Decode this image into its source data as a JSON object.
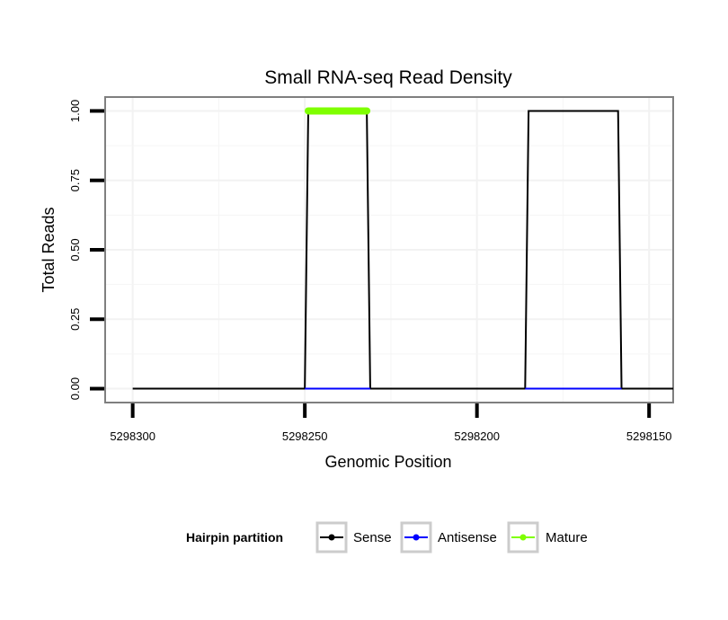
{
  "chart_data": {
    "type": "line",
    "title": "Small RNA-seq Read Density",
    "xlabel": "Genomic Position",
    "ylabel": "Total Reads",
    "x_reversed": true,
    "xlim": [
      5298308,
      5298143
    ],
    "ylim": [
      -0.05,
      1.05
    ],
    "x_ticks": [
      5298300,
      5298250,
      5298200,
      5298150
    ],
    "x_tick_labels": [
      "5298300",
      "5298250",
      "5298200",
      "5298150"
    ],
    "y_ticks": [
      0,
      0.25,
      0.5,
      0.75,
      1
    ],
    "y_tick_labels": [
      "0.00",
      "0.25",
      "0.50",
      "0.75",
      "1.00"
    ],
    "grid": true,
    "legend": {
      "title": "Hairpin partition",
      "position": "bottom",
      "entries": [
        {
          "label": "Sense",
          "color": "#000000"
        },
        {
          "label": "Antisense",
          "color": "#0000ff"
        },
        {
          "label": "Mature",
          "color": "#7fff00"
        }
      ]
    },
    "series": [
      {
        "name": "Sense",
        "color": "#000000",
        "x": [
          5298300,
          5298250,
          5298249,
          5298232,
          5298231,
          5298186,
          5298185,
          5298159,
          5298158,
          5298143
        ],
        "y": [
          0,
          0,
          1,
          1,
          0,
          0,
          1,
          1,
          0,
          0
        ]
      },
      {
        "name": "Antisense",
        "color": "#0000ff",
        "x": [
          5298250,
          5298231,
          5298186,
          5298158
        ],
        "y": [
          0,
          0,
          0,
          0
        ],
        "segments": [
          [
            0,
            1
          ],
          [
            2,
            3
          ]
        ]
      },
      {
        "name": "Mature",
        "color": "#7fff00",
        "x": [
          5298249,
          5298232
        ],
        "y": [
          1,
          1
        ]
      }
    ]
  }
}
